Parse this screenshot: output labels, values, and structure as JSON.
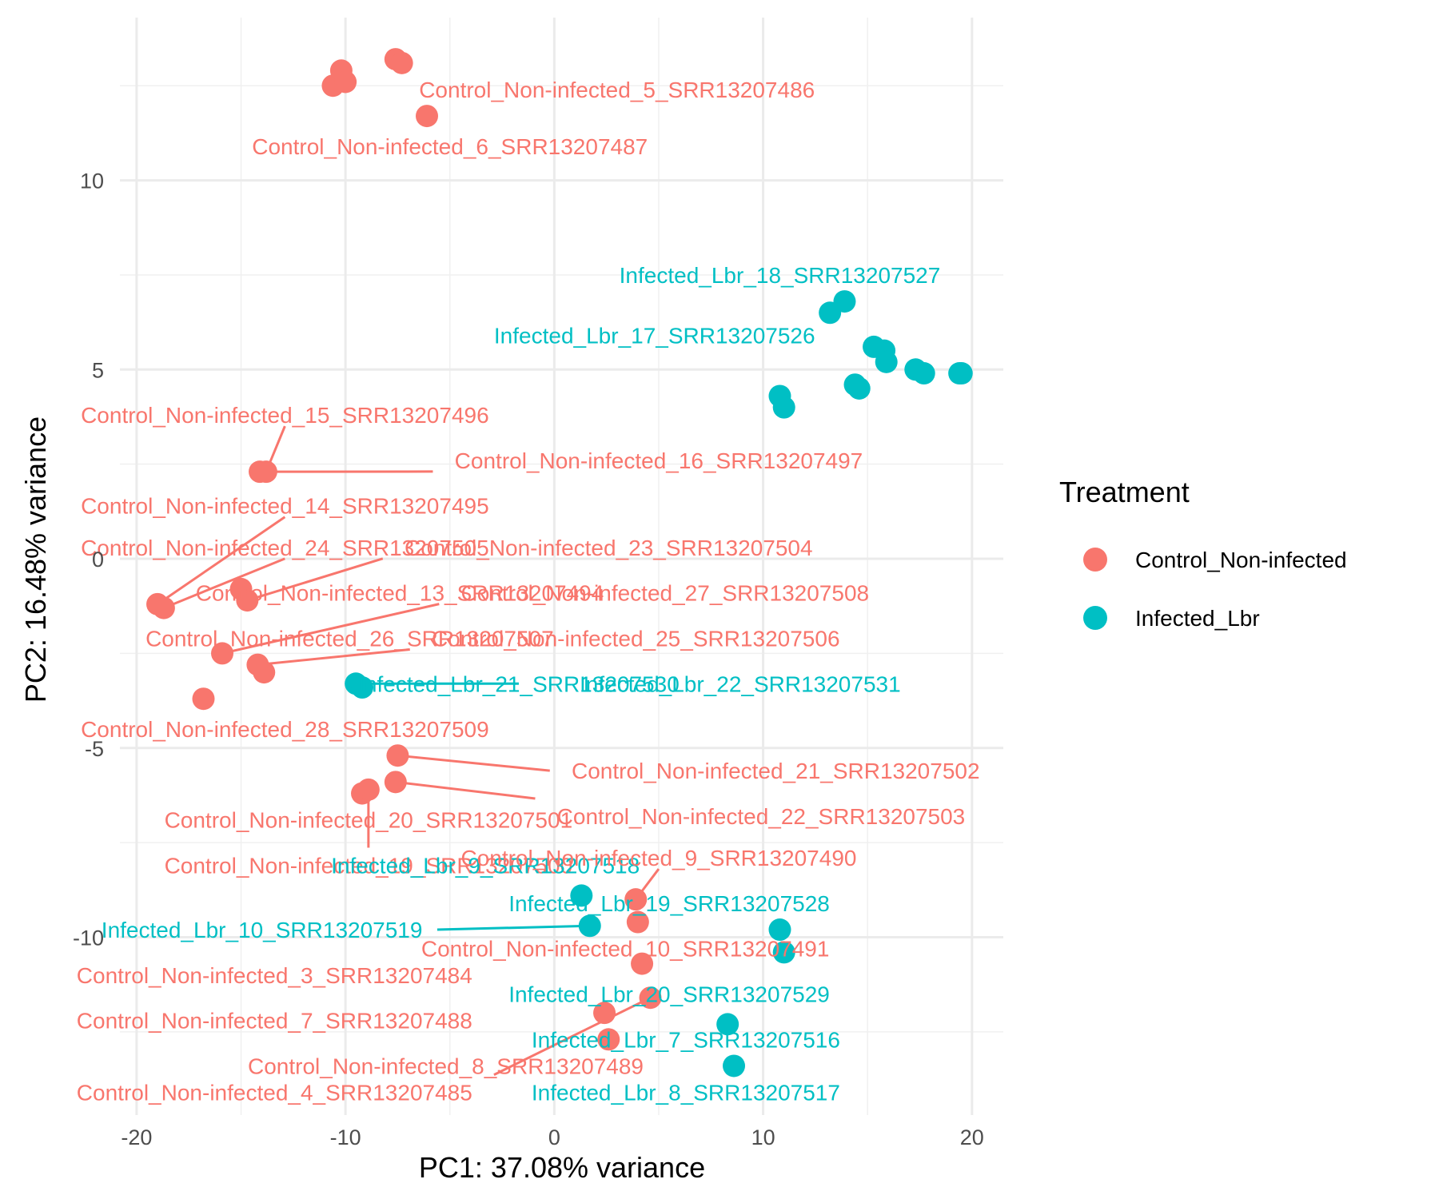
{
  "chart_data": {
    "type": "scatter",
    "xlabel": "PC1: 37.08% variance",
    "ylabel": "PC2: 16.48% variance",
    "xlim": [
      -20.8,
      21.5
    ],
    "ylim": [
      -14.7,
      14.3
    ],
    "x_ticks": [
      -20,
      -10,
      0,
      10,
      20
    ],
    "y_ticks": [
      -10,
      -5,
      0,
      5,
      10
    ],
    "x_tick_labels": [
      "-20",
      "-10",
      "0",
      "10",
      "20"
    ],
    "y_tick_labels": [
      "-10",
      "-5",
      "0",
      "5",
      "10"
    ],
    "grid": true,
    "legend": {
      "title": "Treatment",
      "position": "right",
      "entries": [
        {
          "label": "Control_Non-infected",
          "color": "#F8766D"
        },
        {
          "label": "Infected_Lbr",
          "color": "#00BFC4"
        }
      ]
    },
    "series": [
      {
        "name": "Control_Non-infected",
        "color": "#F8766D",
        "points": [
          {
            "x": -10.6,
            "y": 12.5
          },
          {
            "x": -10.2,
            "y": 12.9
          },
          {
            "x": -10.0,
            "y": 12.6
          },
          {
            "x": -7.6,
            "y": 13.2
          },
          {
            "x": -7.3,
            "y": 13.1
          },
          {
            "x": -6.1,
            "y": 11.7
          },
          {
            "x": -14.1,
            "y": 2.3
          },
          {
            "x": -13.8,
            "y": 2.3
          },
          {
            "x": -19.0,
            "y": -1.2
          },
          {
            "x": -18.7,
            "y": -1.3
          },
          {
            "x": -15.0,
            "y": -0.8
          },
          {
            "x": -14.7,
            "y": -1.1
          },
          {
            "x": -15.9,
            "y": -2.5
          },
          {
            "x": -14.2,
            "y": -2.8
          },
          {
            "x": -13.9,
            "y": -3.0
          },
          {
            "x": -16.8,
            "y": -3.7
          },
          {
            "x": -7.5,
            "y": -5.2
          },
          {
            "x": -9.2,
            "y": -6.2
          },
          {
            "x": -8.9,
            "y": -6.1
          },
          {
            "x": -7.6,
            "y": -5.9
          },
          {
            "x": 3.9,
            "y": -9.0
          },
          {
            "x": 4.0,
            "y": -9.6
          },
          {
            "x": 4.2,
            "y": -10.7
          },
          {
            "x": 4.6,
            "y": -11.6
          },
          {
            "x": 2.4,
            "y": -12.0
          },
          {
            "x": 2.6,
            "y": -12.7
          }
        ]
      },
      {
        "name": "Infected_Lbr",
        "color": "#00BFC4",
        "points": [
          {
            "x": 13.2,
            "y": 6.5
          },
          {
            "x": 13.9,
            "y": 6.8
          },
          {
            "x": 15.3,
            "y": 5.6
          },
          {
            "x": 15.8,
            "y": 5.5
          },
          {
            "x": 15.9,
            "y": 5.2
          },
          {
            "x": 17.3,
            "y": 5.0
          },
          {
            "x": 17.7,
            "y": 4.9
          },
          {
            "x": 19.4,
            "y": 4.9
          },
          {
            "x": 19.5,
            "y": 4.9
          },
          {
            "x": 14.4,
            "y": 4.6
          },
          {
            "x": 14.6,
            "y": 4.5
          },
          {
            "x": 10.8,
            "y": 4.3
          },
          {
            "x": 11.0,
            "y": 4.0
          },
          {
            "x": -9.5,
            "y": -3.3
          },
          {
            "x": -9.2,
            "y": -3.4
          },
          {
            "x": 1.3,
            "y": -8.9
          },
          {
            "x": 1.7,
            "y": -9.7
          },
          {
            "x": 10.8,
            "y": -9.8
          },
          {
            "x": 11.0,
            "y": -10.4
          },
          {
            "x": 8.3,
            "y": -12.3
          },
          {
            "x": 8.6,
            "y": -13.4
          }
        ]
      }
    ],
    "labels": [
      {
        "text": "Control_Non-infected_5_SRR13207486",
        "color": "#F8766D",
        "x": 3.0,
        "y": 12.4,
        "px": -7.4,
        "py": 13.2,
        "seg": false
      },
      {
        "text": "Control_Non-infected_6_SRR13207487",
        "color": "#F8766D",
        "x": -5.0,
        "y": 10.9,
        "px": -6.1,
        "py": 11.7,
        "seg": false
      },
      {
        "text": "Infected_Lbr_18_SRR13207527",
        "color": "#00BFC4",
        "x": 10.8,
        "y": 7.5,
        "px": 13.9,
        "py": 6.8,
        "seg": false
      },
      {
        "text": "Infected_Lbr_17_SRR13207526",
        "color": "#00BFC4",
        "x": 4.8,
        "y": 5.9,
        "px": 15.3,
        "py": 5.6,
        "seg": false
      },
      {
        "text": "Control_Non-infected_15_SRR13207496",
        "color": "#F8766D",
        "x": -12.9,
        "y": 3.8,
        "px": -13.8,
        "py": 2.3,
        "seg": true
      },
      {
        "text": "Control_Non-infected_16_SRR13207497",
        "color": "#F8766D",
        "x": 5.0,
        "y": 2.6,
        "px": -13.8,
        "py": 2.3,
        "seg": true
      },
      {
        "text": "Control_Non-infected_14_SRR13207495",
        "color": "#F8766D",
        "x": -12.9,
        "y": 1.4,
        "px": -19.0,
        "py": -1.2,
        "seg": true
      },
      {
        "text": "Control_Non-infected_24_SRR13207505",
        "color": "#F8766D",
        "x": -12.9,
        "y": 0.3,
        "px": -18.7,
        "py": -1.3,
        "seg": true
      },
      {
        "text": "Control_Non-infected_23_SRR13207504",
        "color": "#F8766D",
        "x": 2.6,
        "y": 0.3,
        "px": -14.7,
        "py": -1.1,
        "seg": true
      },
      {
        "text": "Control_Non-infected_13_SRR13207494",
        "color": "#F8766D",
        "x": -7.4,
        "y": -0.9,
        "px": -15.0,
        "py": -0.8,
        "seg": false
      },
      {
        "text": "Control_Non-infected_27_SRR13207508",
        "color": "#F8766D",
        "x": 5.3,
        "y": -0.9,
        "px": -15.9,
        "py": -2.5,
        "seg": true
      },
      {
        "text": "Control_Non-infected_26_SRR13207507",
        "color": "#F8766D",
        "x": -9.8,
        "y": -2.1,
        "px": -15.9,
        "py": -2.5,
        "seg": false
      },
      {
        "text": "Control_Non-infected_25_SRR13207506",
        "color": "#F8766D",
        "x": 3.9,
        "y": -2.1,
        "px": -14.2,
        "py": -2.8,
        "seg": true
      },
      {
        "text": "Infected_Lbr_21_SRR13207530",
        "color": "#00BFC4",
        "x": -1.7,
        "y": -3.3,
        "px": -9.2,
        "py": -3.3,
        "seg": true
      },
      {
        "text": "Infected_Lbr_22_SRR13207531",
        "color": "#00BFC4",
        "x": 8.9,
        "y": -3.3,
        "px": -9.2,
        "py": -3.3,
        "seg": false
      },
      {
        "text": "Control_Non-infected_28_SRR13207509",
        "color": "#F8766D",
        "x": -12.9,
        "y": -4.5,
        "px": -16.8,
        "py": -3.7,
        "seg": false
      },
      {
        "text": "Control_Non-infected_21_SRR13207502",
        "color": "#F8766D",
        "x": 10.6,
        "y": -5.6,
        "px": -7.5,
        "py": -5.2,
        "seg": true
      },
      {
        "text": "Control_Non-infected_22_SRR13207503",
        "color": "#F8766D",
        "x": 9.9,
        "y": -6.8,
        "px": -7.6,
        "py": -5.9,
        "seg": true
      },
      {
        "text": "Control_Non-infected_20_SRR13207501",
        "color": "#F8766D",
        "x": -8.9,
        "y": -6.9,
        "px": -9.0,
        "py": -6.1,
        "seg": false
      },
      {
        "text": "Control_Non-infected_19_SRR13207500",
        "color": "#F8766D",
        "x": -8.9,
        "y": -8.1,
        "px": -8.9,
        "py": -6.1,
        "seg": true
      },
      {
        "text": "Infected_Lbr_9_SRR13207518",
        "color": "#00BFC4",
        "x": -3.3,
        "y": -8.1,
        "px": 1.3,
        "py": -8.9,
        "seg": false
      },
      {
        "text": "Control_Non-infected_9_SRR13207490",
        "color": "#F8766D",
        "x": 5.0,
        "y": -7.9,
        "px": 3.9,
        "py": -9.0,
        "seg": true
      },
      {
        "text": "Infected_Lbr_19_SRR13207528",
        "color": "#00BFC4",
        "x": 5.5,
        "y": -9.1,
        "px": 10.8,
        "py": -9.8,
        "seg": false
      },
      {
        "text": "Infected_Lbr_10_SRR13207519",
        "color": "#00BFC4",
        "x": -14.0,
        "y": -9.8,
        "px": 1.7,
        "py": -9.7,
        "seg": true
      },
      {
        "text": "Control_Non-infected_10_SRR13207491",
        "color": "#F8766D",
        "x": 3.4,
        "y": -10.3,
        "px": 4.0,
        "py": -9.6,
        "seg": false
      },
      {
        "text": "Control_Non-infected_3_SRR13207484",
        "color": "#F8766D",
        "x": -13.4,
        "y": -11.0,
        "px": 4.2,
        "py": -10.7,
        "seg": false
      },
      {
        "text": "Infected_Lbr_20_SRR13207529",
        "color": "#00BFC4",
        "x": 5.5,
        "y": -11.5,
        "px": 8.3,
        "py": -12.3,
        "seg": false
      },
      {
        "text": "Control_Non-infected_7_SRR13207488",
        "color": "#F8766D",
        "x": -13.4,
        "y": -12.2,
        "px": 2.4,
        "py": -12.0,
        "seg": false
      },
      {
        "text": "Infected_Lbr_7_SRR13207516",
        "color": "#00BFC4",
        "x": 6.3,
        "y": -12.7,
        "px": 8.6,
        "py": -13.4,
        "seg": false
      },
      {
        "text": "Control_Non-infected_8_SRR13207489",
        "color": "#F8766D",
        "x": -5.2,
        "y": -13.4,
        "px": 2.6,
        "py": -12.7,
        "seg": false
      },
      {
        "text": "Control_Non-infected_4_SRR13207485",
        "color": "#F8766D",
        "x": -13.4,
        "y": -14.1,
        "px": 4.6,
        "py": -11.6,
        "seg": true
      },
      {
        "text": "Infected_Lbr_8_SRR13207517",
        "color": "#00BFC4",
        "x": 6.3,
        "y": -14.1,
        "px": 8.6,
        "py": -13.4,
        "seg": false
      }
    ]
  }
}
